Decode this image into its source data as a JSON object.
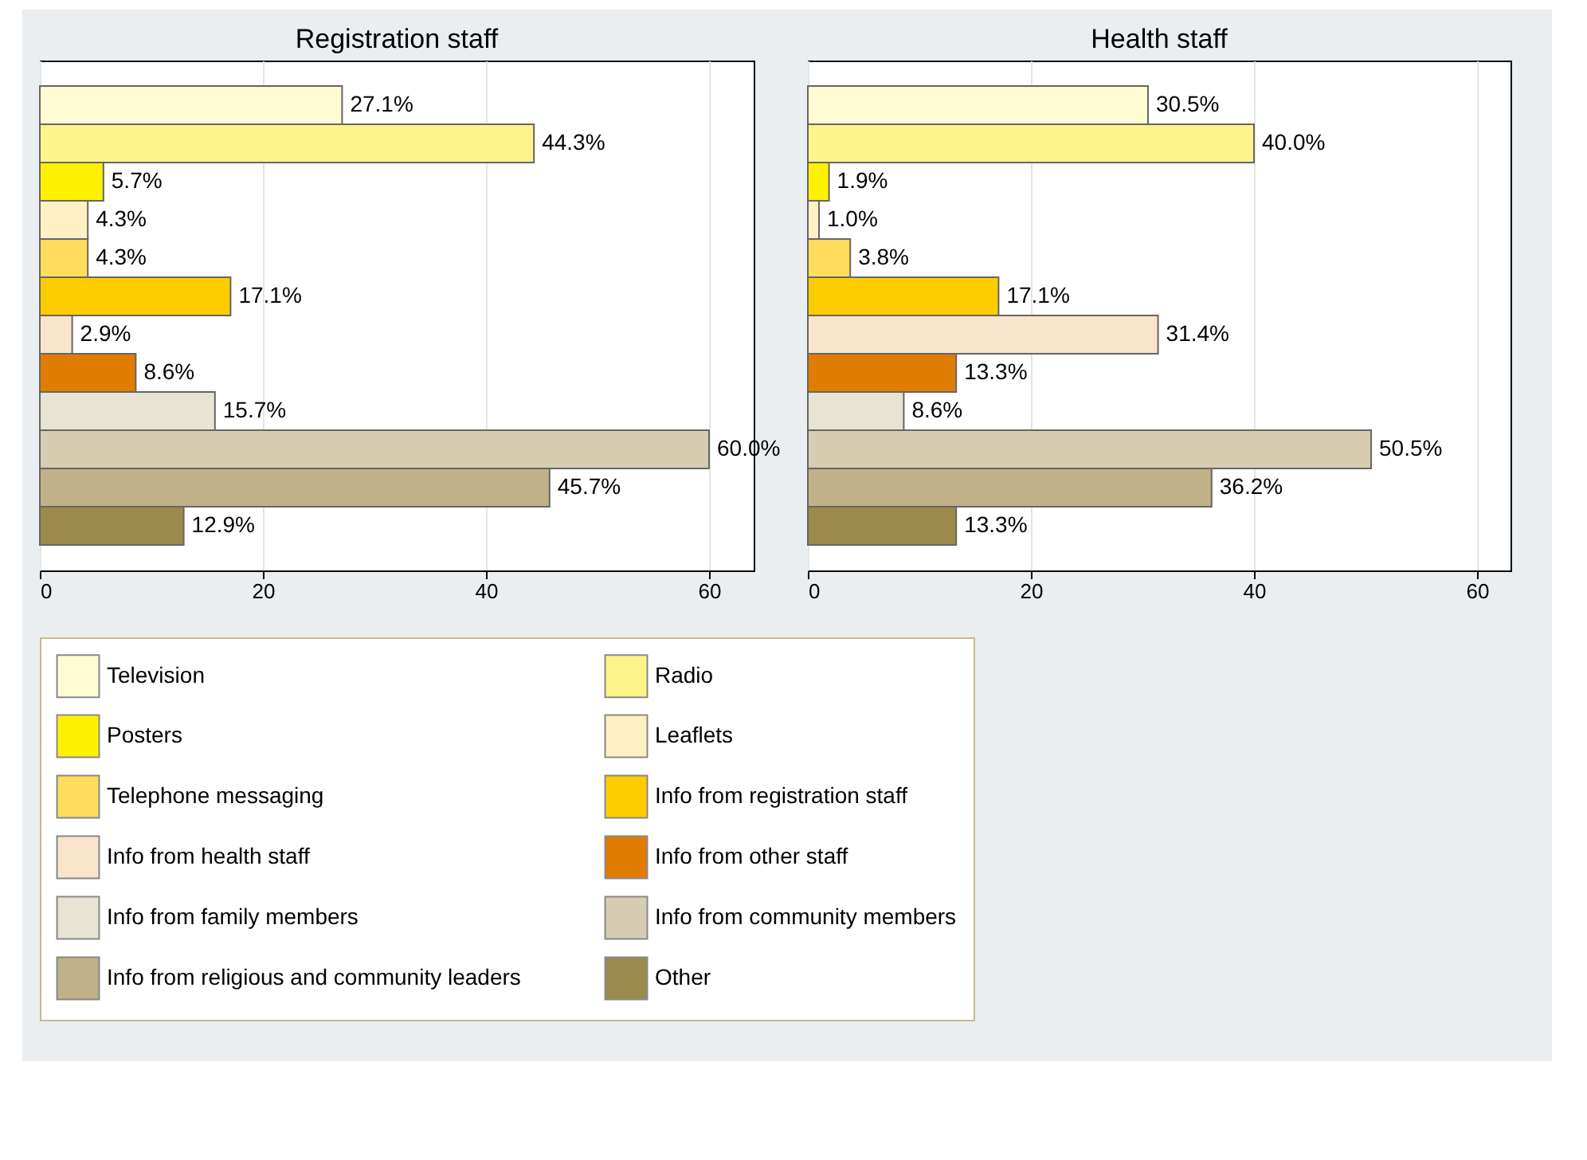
{
  "chart_data": [
    {
      "type": "bar",
      "orientation": "horizontal",
      "title": "Registration staff",
      "categories": [
        null
      ],
      "series": [
        {
          "name": "Television",
          "color": "#fffbd2",
          "values": [
            27.1
          ],
          "value_labels": [
            "27.1%"
          ]
        },
        {
          "name": "Radio",
          "color": "#fff48a",
          "values": [
            44.3
          ],
          "value_labels": [
            "44.3%"
          ]
        },
        {
          "name": "Posters",
          "color": "#fff200",
          "values": [
            5.7
          ],
          "value_labels": [
            "5.7%"
          ]
        },
        {
          "name": "Leaflets",
          "color": "#fff0c4",
          "values": [
            4.3
          ],
          "value_labels": [
            "4.3%"
          ]
        },
        {
          "name": "Telephone messaging",
          "color": "#ffdc5c",
          "values": [
            4.3
          ],
          "value_labels": [
            "4.3%"
          ]
        },
        {
          "name": "Info from registration staff",
          "color": "#ffcc00",
          "values": [
            17.1
          ],
          "value_labels": [
            "17.1%"
          ]
        },
        {
          "name": "Info from health staff",
          "color": "#fbe4cc",
          "values": [
            2.9
          ],
          "value_labels": [
            "2.9%"
          ]
        },
        {
          "name": "Info from other staff",
          "color": "#e07c00",
          "values": [
            8.6
          ],
          "value_labels": [
            "8.6%"
          ]
        },
        {
          "name": "Info from family members",
          "color": "#e8e3d3",
          "values": [
            15.7
          ],
          "value_labels": [
            "15.7%"
          ]
        },
        {
          "name": "Info from community members",
          "color": "#d6cdb2",
          "values": [
            60.0
          ],
          "value_labels": [
            "60.0%"
          ]
        },
        {
          "name": "Info from religious and community leaders",
          "color": "#c0b188",
          "values": [
            45.7
          ],
          "value_labels": [
            "45.7%"
          ]
        },
        {
          "name": "Other",
          "color": "#9c8a4c",
          "values": [
            12.9
          ],
          "value_labels": [
            "12.9%"
          ]
        }
      ],
      "xlim": [
        0,
        64
      ],
      "xticks": [
        0,
        20,
        40,
        60
      ],
      "grid": "x",
      "legend": "bottom",
      "tick_labels": "x"
    },
    {
      "type": "bar",
      "orientation": "horizontal",
      "title": "Health staff",
      "categories": [
        null
      ],
      "series": [
        {
          "color": "#fffbd2",
          "values": [
            30.5
          ],
          "value_labels": [
            "30.5%"
          ]
        },
        {
          "color": "#fff48a",
          "values": [
            40.0
          ],
          "value_labels": [
            "40.0%"
          ]
        },
        {
          "color": "#fff200",
          "values": [
            1.9
          ],
          "value_labels": [
            "1.9%"
          ]
        },
        {
          "color": "#fff0c4",
          "values": [
            1.0
          ],
          "value_labels": [
            "1.0%"
          ]
        },
        {
          "color": "#ffdc5c",
          "values": [
            3.8
          ],
          "value_labels": [
            "3.8%"
          ]
        },
        {
          "color": "#ffcc00",
          "values": [
            17.1
          ],
          "value_labels": [
            "17.1%"
          ]
        },
        {
          "color": "#fbe4cc",
          "values": [
            31.4
          ],
          "value_labels": [
            "31.4%"
          ]
        },
        {
          "color": "#e07c00",
          "values": [
            13.3
          ],
          "value_labels": [
            "13.3%"
          ]
        },
        {
          "color": "#e8e3d3",
          "values": [
            8.6
          ],
          "value_labels": [
            "8.6%"
          ]
        },
        {
          "color": "#d6cdb2",
          "values": [
            50.5
          ],
          "value_labels": [
            "50.5%"
          ]
        },
        {
          "color": "#c0b188",
          "values": [
            36.2
          ],
          "value_labels": [
            "36.2%"
          ]
        },
        {
          "color": "#9c8a4c",
          "values": [
            13.3
          ],
          "value_labels": [
            "13.3%"
          ]
        }
      ],
      "xlim": [
        0,
        63
      ],
      "xticks": [
        0,
        20,
        40,
        60
      ],
      "grid": "x",
      "tick_labels": "x"
    }
  ]
}
